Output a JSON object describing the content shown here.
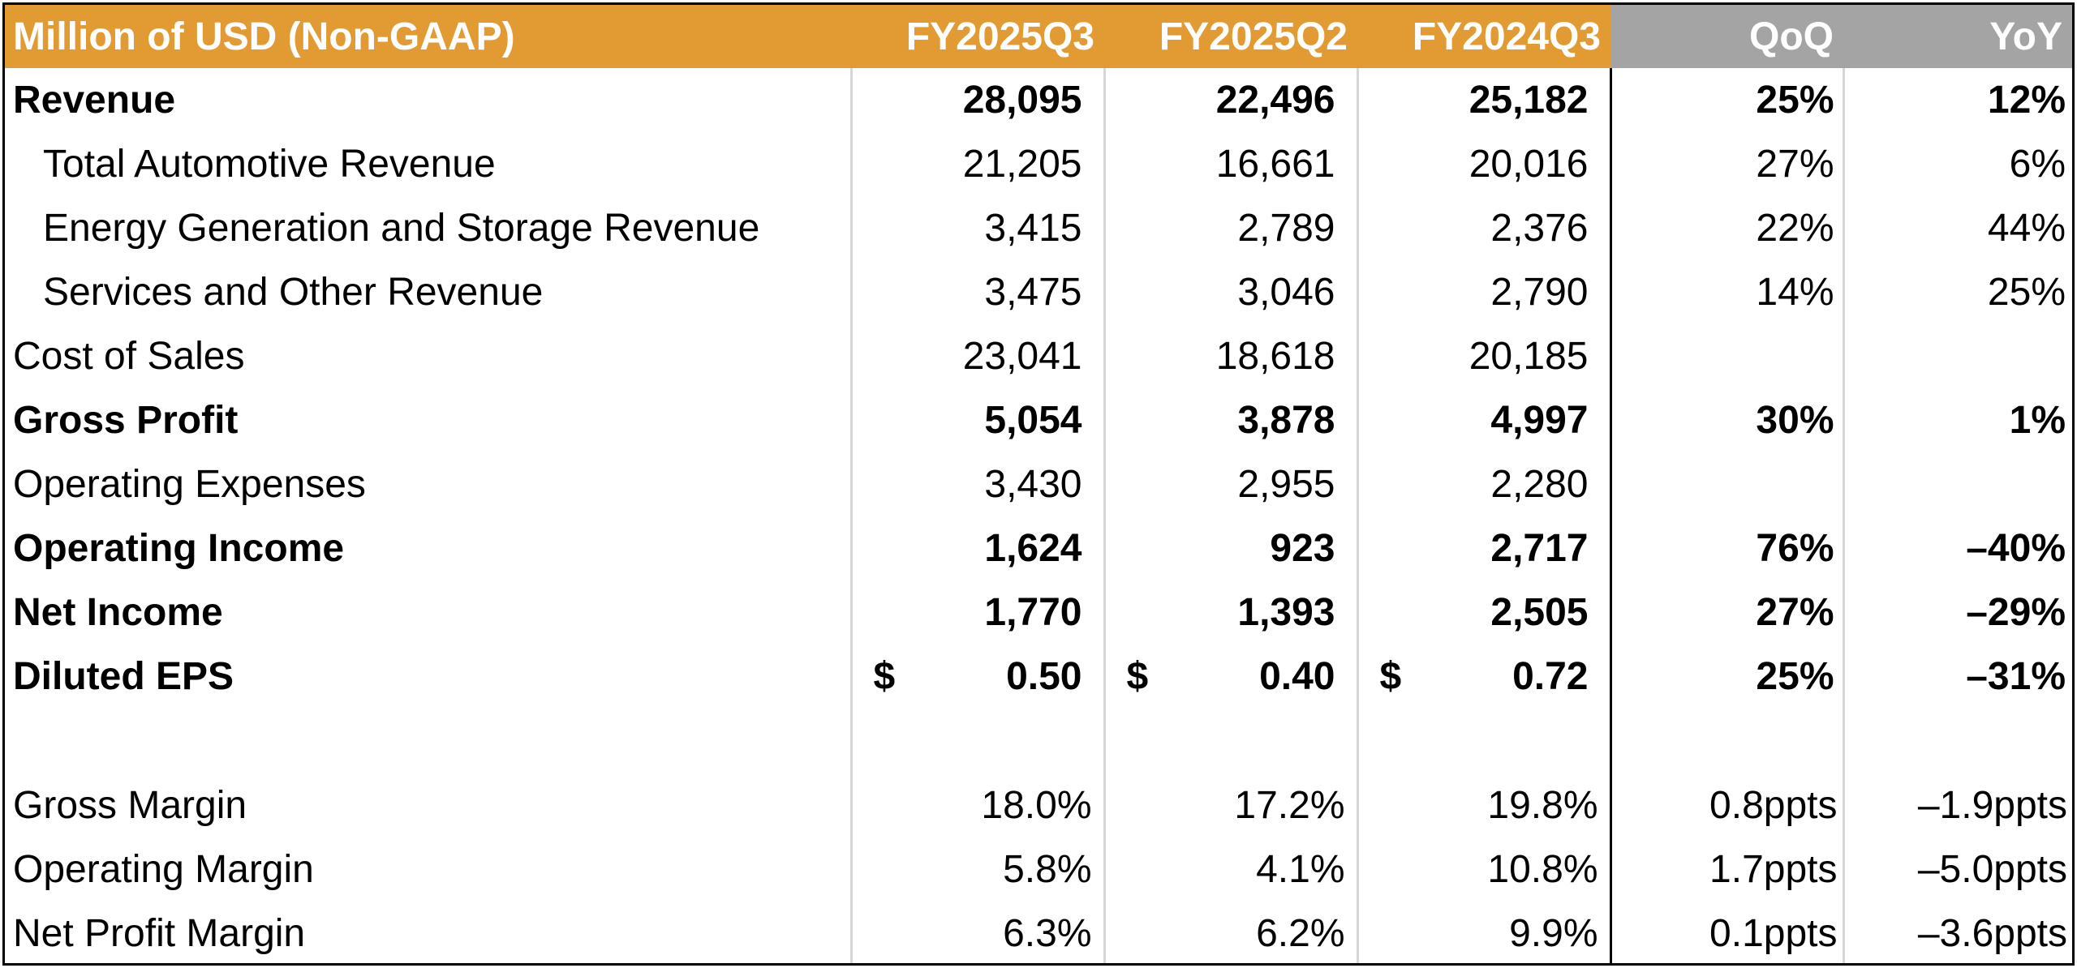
{
  "header": {
    "label": "Million of USD (Non-GAAP)",
    "columns": [
      "FY2025Q3",
      "FY2025Q2",
      "FY2024Q3",
      "QoQ",
      "YoY"
    ]
  },
  "rows": [
    {
      "label": "Revenue",
      "values": [
        "28,095",
        "22,496",
        "25,182",
        "25%",
        "12%"
      ]
    },
    {
      "label": "Total Automotive Revenue",
      "values": [
        "21,205",
        "16,661",
        "20,016",
        "27%",
        "6%"
      ]
    },
    {
      "label": "Energy Generation and Storage Revenue",
      "values": [
        "3,415",
        "2,789",
        "2,376",
        "22%",
        "44%"
      ]
    },
    {
      "label": "Services and Other Revenue",
      "values": [
        "3,475",
        "3,046",
        "2,790",
        "14%",
        "25%"
      ]
    },
    {
      "label": "Cost of Sales",
      "values": [
        "23,041",
        "18,618",
        "20,185",
        "",
        ""
      ]
    },
    {
      "label": "Gross Profit",
      "values": [
        "5,054",
        "3,878",
        "4,997",
        "30%",
        "1%"
      ]
    },
    {
      "label": "Operating Expenses",
      "values": [
        "3,430",
        "2,955",
        "2,280",
        "",
        ""
      ]
    },
    {
      "label": "Operating Income",
      "values": [
        "1,624",
        "923",
        "2,717",
        "76%",
        "–40%"
      ]
    },
    {
      "label": "Net Income",
      "values": [
        "1,770",
        "1,393",
        "2,505",
        "27%",
        "–29%"
      ]
    },
    {
      "label": "Diluted EPS",
      "currency": "$",
      "values": [
        "0.50",
        "0.40",
        "0.72",
        "25%",
        "–31%"
      ]
    },
    {
      "label": "Gross Margin",
      "values": [
        "18.0%",
        "17.2%",
        "19.8%",
        "0.8ppts",
        "–1.9ppts"
      ]
    },
    {
      "label": "Operating Margin",
      "values": [
        "5.8%",
        "4.1%",
        "10.8%",
        "1.7ppts",
        "–5.0ppts"
      ]
    },
    {
      "label": "Net Profit Margin",
      "values": [
        "6.3%",
        "6.2%",
        "9.9%",
        "0.1ppts",
        "–3.6ppts"
      ]
    }
  ],
  "colors": {
    "header_orange": "#E29A33",
    "header_grey": "#A4A4A4",
    "border": "#000000",
    "divider": "#D6D6D6"
  }
}
